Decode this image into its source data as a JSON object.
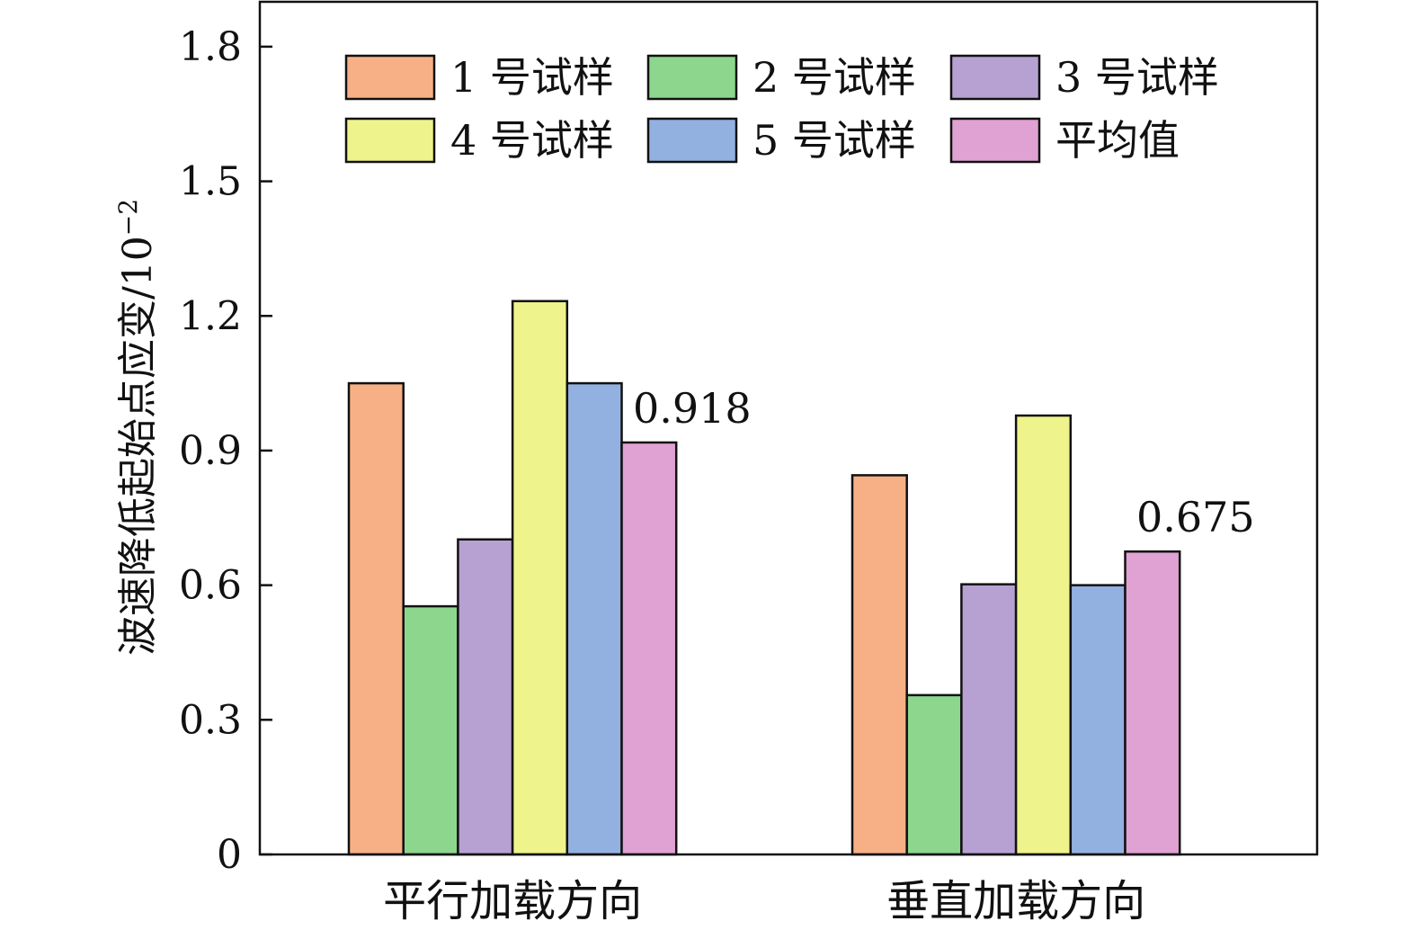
{
  "chart_data": {
    "type": "bar",
    "ylabel": "波速降低起始点应变/10",
    "ylabel_exponent": "−2",
    "ylim": [
      0,
      1.9
    ],
    "yticks": [
      "0",
      "0.3",
      "0.6",
      "0.9",
      "1.2",
      "1.5",
      "1.8"
    ],
    "ytick_values": [
      0,
      0.3,
      0.6,
      0.9,
      1.2,
      1.5,
      1.8
    ],
    "categories": [
      "平行加载方向",
      "垂直加载方向"
    ],
    "series": [
      {
        "name": "1 号试样",
        "color": "#F7B085",
        "values": [
          1.05,
          0.845
        ]
      },
      {
        "name": "2 号试样",
        "color": "#8DD68E",
        "values": [
          0.553,
          0.355
        ]
      },
      {
        "name": "3 号试样",
        "color": "#B7A1D3",
        "values": [
          0.702,
          0.602
        ]
      },
      {
        "name": "4 号试样",
        "color": "#EFF38B",
        "values": [
          1.233,
          0.978
        ]
      },
      {
        "name": "5 号试样",
        "color": "#93B1E0",
        "values": [
          1.05,
          0.6
        ]
      },
      {
        "name": "平均值",
        "color": "#E0A1D3",
        "values": [
          0.918,
          0.675
        ]
      }
    ],
    "data_labels": [
      {
        "series": "平均值",
        "category": "平行加载方向",
        "text": "0.918"
      },
      {
        "series": "平均值",
        "category": "垂直加载方向",
        "text": "0.675"
      }
    ],
    "legend_position": "top",
    "grid": false
  }
}
